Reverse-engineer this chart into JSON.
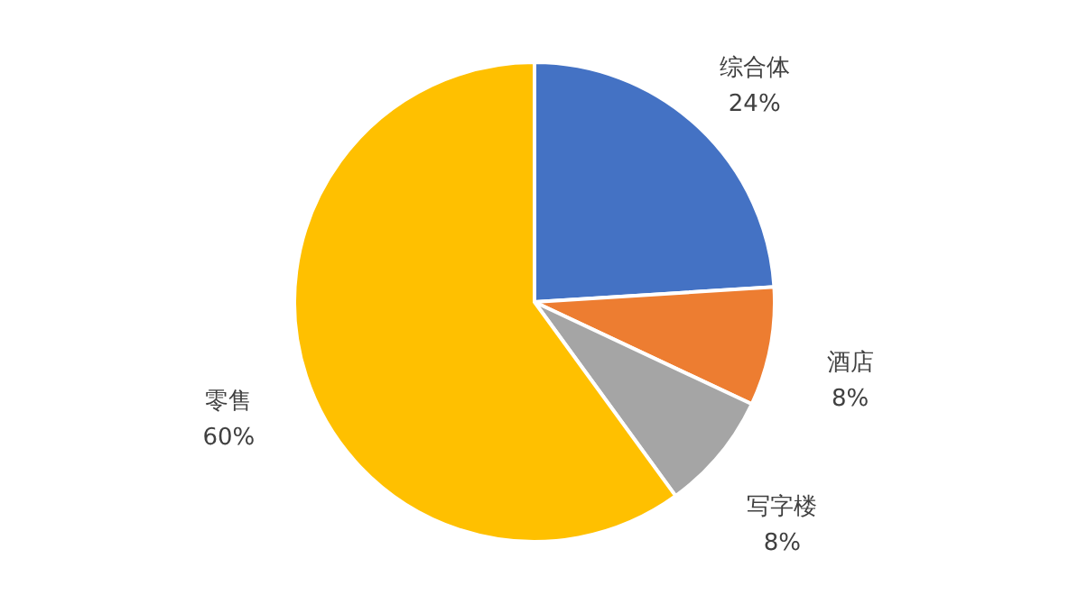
{
  "chart_data": {
    "type": "pie",
    "categories": [
      "综合体",
      "酒店",
      "写字楼",
      "零售"
    ],
    "values": [
      24,
      8,
      8,
      60
    ],
    "colors": [
      "#4472c4",
      "#ed7d31",
      "#a5a5a5",
      "#ffc000"
    ],
    "value_labels": [
      "24%",
      "8%",
      "8%",
      "60%"
    ]
  }
}
